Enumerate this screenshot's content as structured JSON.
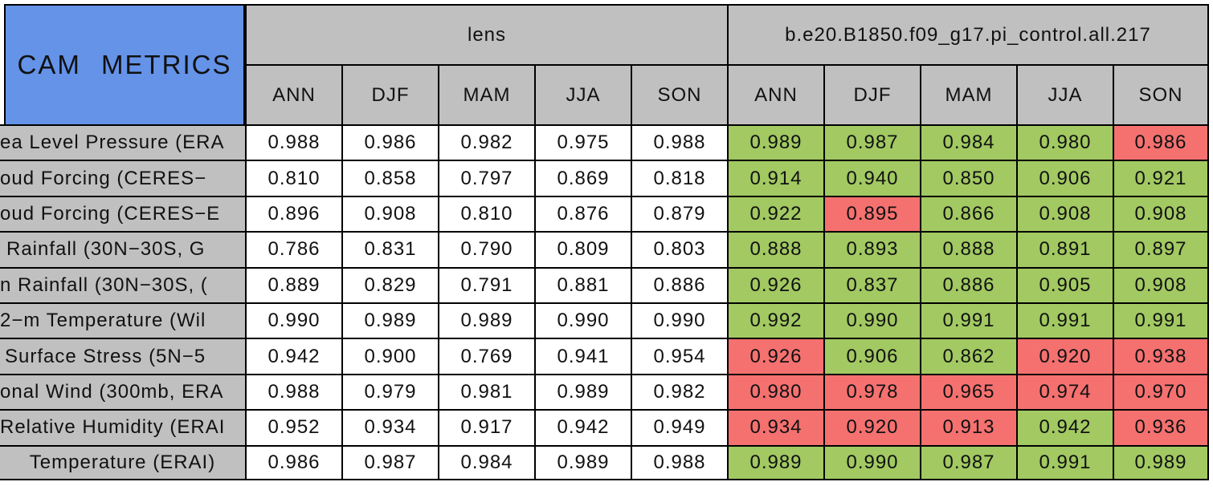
{
  "colors": {
    "title_cell_blue": "#6493E8",
    "header_gray": "#C0C0C0",
    "pass_green": "#A2C962",
    "fail_red": "#F47170",
    "value_cell_white": "#FFFFFF",
    "grid_black": "#000000"
  },
  "chart_data": {
    "type": "table",
    "title": "CAM METRICS",
    "column_groups": [
      "lens",
      "b.e20.B1850.f09_g17.pi_control.all.217"
    ],
    "seasons": [
      "ANN",
      "DJF",
      "MAM",
      "JJA",
      "SON"
    ],
    "rows": [
      {
        "label": "ea Level Pressure (ERA",
        "lens": [
          "0.988",
          "0.986",
          "0.982",
          "0.975",
          "0.988"
        ],
        "control": [
          "0.989",
          "0.987",
          "0.984",
          "0.980",
          "0.986"
        ],
        "control_states": [
          "green",
          "green",
          "green",
          "green",
          "red"
        ]
      },
      {
        "label": "oud Forcing (CERES−",
        "lens": [
          "0.810",
          "0.858",
          "0.797",
          "0.869",
          "0.818"
        ],
        "control": [
          "0.914",
          "0.940",
          "0.850",
          "0.906",
          "0.921"
        ],
        "control_states": [
          "green",
          "green",
          "green",
          "green",
          "green"
        ]
      },
      {
        "label": "oud Forcing (CERES−E",
        "lens": [
          "0.896",
          "0.908",
          "0.810",
          "0.876",
          "0.879"
        ],
        "control": [
          "0.922",
          "0.895",
          "0.866",
          "0.908",
          "0.908"
        ],
        "control_states": [
          "green",
          "red",
          "green",
          "green",
          "green"
        ]
      },
      {
        "label": "Rainfall (30N−30S, G",
        "lens": [
          "0.786",
          "0.831",
          "0.790",
          "0.809",
          "0.803"
        ],
        "control": [
          "0.888",
          "0.893",
          "0.888",
          "0.891",
          "0.897"
        ],
        "control_states": [
          "green",
          "green",
          "green",
          "green",
          "green"
        ]
      },
      {
        "label": "n Rainfall (30N−30S, (",
        "lens": [
          "0.889",
          "0.829",
          "0.791",
          "0.881",
          "0.886"
        ],
        "control": [
          "0.926",
          "0.837",
          "0.886",
          "0.905",
          "0.908"
        ],
        "control_states": [
          "green",
          "green",
          "green",
          "green",
          "green"
        ]
      },
      {
        "label": "2−m Temperature (Wil",
        "lens": [
          "0.990",
          "0.989",
          "0.989",
          "0.990",
          "0.990"
        ],
        "control": [
          "0.992",
          "0.990",
          "0.991",
          "0.991",
          "0.991"
        ],
        "control_states": [
          "green",
          "green",
          "green",
          "green",
          "green"
        ]
      },
      {
        "label": "Surface Stress (5N−5",
        "lens": [
          "0.942",
          "0.900",
          "0.769",
          "0.941",
          "0.954"
        ],
        "control": [
          "0.926",
          "0.906",
          "0.862",
          "0.920",
          "0.938"
        ],
        "control_states": [
          "red",
          "green",
          "green",
          "red",
          "red"
        ]
      },
      {
        "label": "onal Wind (300mb, ERA",
        "lens": [
          "0.988",
          "0.979",
          "0.981",
          "0.989",
          "0.982"
        ],
        "control": [
          "0.980",
          "0.978",
          "0.965",
          "0.974",
          "0.970"
        ],
        "control_states": [
          "red",
          "red",
          "red",
          "red",
          "red"
        ]
      },
      {
        "label": "Relative Humidity (ERAI",
        "lens": [
          "0.952",
          "0.934",
          "0.917",
          "0.942",
          "0.949"
        ],
        "control": [
          "0.934",
          "0.920",
          "0.913",
          "0.942",
          "0.936"
        ],
        "control_states": [
          "red",
          "red",
          "red",
          "green",
          "red"
        ]
      },
      {
        "label": "Temperature (ERAI)",
        "lens": [
          "0.986",
          "0.987",
          "0.984",
          "0.989",
          "0.988"
        ],
        "control": [
          "0.989",
          "0.990",
          "0.987",
          "0.991",
          "0.989"
        ],
        "control_states": [
          "green",
          "green",
          "green",
          "green",
          "green"
        ]
      }
    ]
  }
}
